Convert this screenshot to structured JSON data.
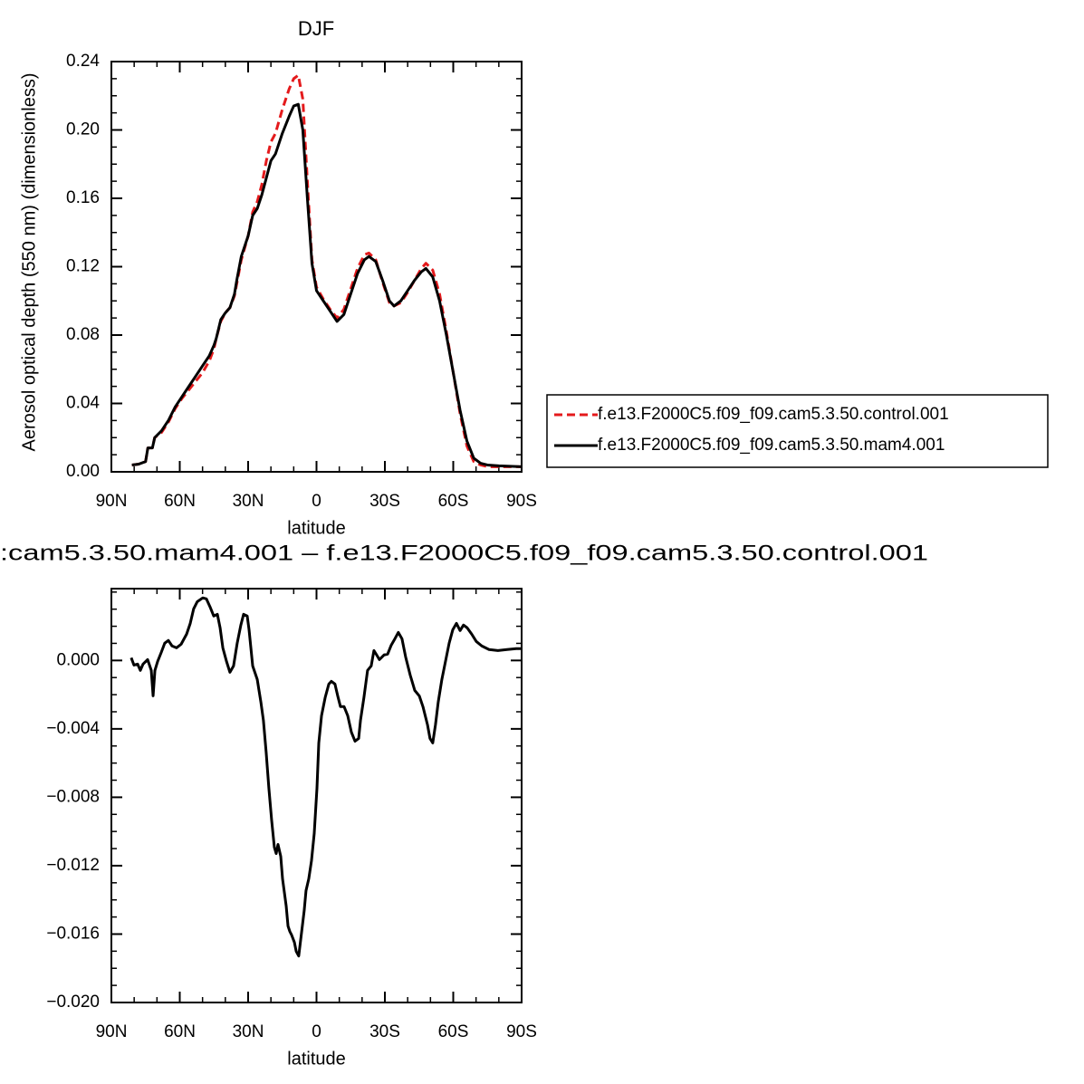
{
  "chart_data": [
    {
      "type": "line",
      "title": "DJF",
      "x_label": "latitude",
      "y_label": "Aerosol optical depth (550 nm) (dimensionless)",
      "x": [
        81,
        78,
        75,
        74,
        72,
        71,
        68,
        65,
        62,
        59,
        56,
        53,
        50,
        47,
        45,
        44,
        42,
        40,
        38,
        36,
        35,
        33,
        30,
        28,
        26,
        24,
        22,
        20,
        18,
        15,
        12,
        10,
        8,
        6,
        4,
        2,
        0,
        -3,
        -6,
        -9,
        -12,
        -15,
        -18,
        -21,
        -23,
        -26,
        -29,
        -32,
        -34,
        -37,
        -40,
        -43,
        -46,
        -48,
        -51,
        -54,
        -57,
        -60,
        -63,
        -66,
        -69,
        -72,
        -75,
        -80,
        -90
      ],
      "series": [
        {
          "name": "f.e13.F2000C5.f09_f09.cam5.3.50.control.001",
          "color": "#e41a1c",
          "line_style": "dashed",
          "values": [
            0.004,
            0.0045,
            0.006,
            0.014,
            0.014,
            0.02,
            0.023,
            0.029,
            0.037,
            0.043,
            0.048,
            0.053,
            0.058,
            0.065,
            0.072,
            0.078,
            0.088,
            0.093,
            0.096,
            0.103,
            0.11,
            0.124,
            0.138,
            0.152,
            0.158,
            0.168,
            0.182,
            0.193,
            0.198,
            0.212,
            0.224,
            0.23,
            0.232,
            0.218,
            0.17,
            0.124,
            0.108,
            0.101,
            0.095,
            0.09,
            0.095,
            0.107,
            0.119,
            0.127,
            0.128,
            0.124,
            0.111,
            0.099,
            0.097,
            0.099,
            0.105,
            0.112,
            0.119,
            0.122,
            0.118,
            0.104,
            0.082,
            0.058,
            0.034,
            0.015,
            0.006,
            0.004,
            0.003,
            0.003,
            0.003
          ]
        },
        {
          "name": "f.e13.F2000C5.f09_f09.cam5.3.50.mam4.001",
          "color": "#000000",
          "line_style": "solid",
          "values": [
            0.004,
            0.0045,
            0.006,
            0.014,
            0.014,
            0.02,
            0.024,
            0.03,
            0.038,
            0.044,
            0.05,
            0.056,
            0.062,
            0.068,
            0.074,
            0.078,
            0.089,
            0.093,
            0.096,
            0.104,
            0.112,
            0.126,
            0.138,
            0.15,
            0.154,
            0.162,
            0.172,
            0.182,
            0.186,
            0.198,
            0.208,
            0.214,
            0.215,
            0.2,
            0.16,
            0.122,
            0.106,
            0.1,
            0.094,
            0.088,
            0.092,
            0.104,
            0.116,
            0.124,
            0.126,
            0.123,
            0.112,
            0.1,
            0.097,
            0.1,
            0.106,
            0.112,
            0.117,
            0.119,
            0.114,
            0.1,
            0.08,
            0.058,
            0.036,
            0.018,
            0.008,
            0.005,
            0.004,
            0.0035,
            0.003
          ]
        }
      ],
      "xlim": [
        90,
        -90
      ],
      "xticks": [
        {
          "value": 90,
          "label": "90N"
        },
        {
          "value": 60,
          "label": "60N"
        },
        {
          "value": 30,
          "label": "30N"
        },
        0,
        {
          "value": -30,
          "label": "30S"
        },
        {
          "value": -60,
          "label": "60S"
        },
        {
          "value": -90,
          "label": "90S"
        }
      ],
      "ylim": [
        0,
        0.24
      ],
      "yticks": [
        {
          "value": 0,
          "label": "0.00"
        },
        0.04,
        0.08,
        0.12,
        0.16,
        {
          "value": 0.2,
          "label": "0.20"
        },
        0.24
      ],
      "legend": "right"
    },
    {
      "type": "line",
      "title": ":cam5.3.50.mam4.001 – f.e13.F2000C5.f09_f09.cam5.3.50.control.001",
      "x_label": "latitude",
      "x": [
        81.3,
        80.1,
        78.5,
        77.3,
        76.1,
        74.1,
        72.5,
        71.7,
        70.9,
        69.7,
        68.1,
        66.6,
        65.0,
        63.4,
        61.4,
        59.4,
        57.0,
        55.4,
        53.9,
        52.3,
        49.9,
        48.3,
        46.7,
        45.1,
        43.5,
        42.3,
        41.1,
        39.5,
        38.0,
        36.4,
        34.8,
        33.2,
        32.0,
        30.4,
        29.6,
        28.0,
        26.0,
        24.4,
        23.3,
        22.1,
        20.9,
        19.7,
        18.5,
        17.7,
        16.9,
        15.7,
        14.9,
        13.3,
        12.5,
        11.7,
        10.9,
        9.7,
        8.9,
        7.8,
        6.6,
        5.4,
        4.6,
        3.4,
        2.2,
        1.0,
        -0.2,
        -1.0,
        -2.2,
        -3.8,
        -5.4,
        -6.5,
        -8.1,
        -9.3,
        -10.5,
        -12.1,
        -13.7,
        -15.3,
        -16.9,
        -18.5,
        -19.3,
        -20.8,
        -22.4,
        -24.0,
        -25.2,
        -26.4,
        -27.6,
        -29.6,
        -31.2,
        -32.8,
        -34.4,
        -35.9,
        -37.5,
        -39.1,
        -41.1,
        -43.1,
        -45.1,
        -46.7,
        -48.7,
        -49.8,
        -51.0,
        -52.2,
        -53.4,
        -55.0,
        -56.6,
        -58.2,
        -59.8,
        -61.4,
        -63.0,
        -64.5,
        -66.1,
        -68.1,
        -70.1,
        -72.5,
        -75.7,
        -79.6,
        -83.6,
        -87.6,
        -90.0
      ],
      "values": [
        0.00016,
        -0.00027,
        -0.00021,
        -0.00058,
        -0.00021,
        5e-05,
        -0.00058,
        -0.00207,
        -0.00058,
        -5e-05,
        0.00048,
        0.00101,
        0.00117,
        0.00085,
        0.00074,
        0.00095,
        0.00154,
        0.00217,
        0.00302,
        0.00344,
        0.00366,
        0.0036,
        0.00313,
        0.0026,
        0.0027,
        0.00191,
        0.00074,
        -5e-05,
        -0.00069,
        -0.00032,
        0.00101,
        0.00207,
        0.0027,
        0.0026,
        0.0018,
        -0.00032,
        -0.00111,
        -0.00244,
        -0.0035,
        -0.00535,
        -0.00747,
        -0.00932,
        -0.01092,
        -0.01129,
        -0.01076,
        -0.01145,
        -0.01277,
        -0.01436,
        -0.01553,
        -0.01585,
        -0.01606,
        -0.01648,
        -0.01701,
        -0.01728,
        -0.01595,
        -0.01463,
        -0.01346,
        -0.01277,
        -0.01171,
        -0.01012,
        -0.00747,
        -0.00482,
        -0.00323,
        -0.00217,
        -0.00138,
        -0.00122,
        -0.00138,
        -0.00207,
        -0.0027,
        -0.0027,
        -0.00323,
        -0.00419,
        -0.00472,
        -0.00456,
        -0.0035,
        -0.00217,
        -0.00058,
        -0.00032,
        0.00058,
        0.00032,
        5e-05,
        0.00032,
        0.00037,
        0.0009,
        0.00127,
        0.00164,
        0.00127,
        0.00021,
        -0.00085,
        -0.00175,
        -0.00207,
        -0.0027,
        -0.00376,
        -0.00456,
        -0.00482,
        -0.00376,
        -0.00244,
        -0.00111,
        -5e-05,
        0.00101,
        0.0018,
        0.00217,
        0.00175,
        0.00207,
        0.00191,
        0.00154,
        0.00111,
        0.00085,
        0.00064,
        0.00058,
        0.00064,
        0.00069,
        0.00069
      ],
      "color": "#000000",
      "xlim": [
        90,
        -90
      ],
      "xticks": [
        {
          "value": 90,
          "label": "90N"
        },
        {
          "value": 60,
          "label": "60N"
        },
        {
          "value": 30,
          "label": "30N"
        },
        0,
        {
          "value": -30,
          "label": "30S"
        },
        {
          "value": -60,
          "label": "60S"
        },
        {
          "value": -90,
          "label": "90S"
        }
      ],
      "ylim": [
        -0.02,
        0.0042
      ],
      "yticks": [
        {
          "value": -0.02,
          "label": "−0.020"
        },
        {
          "value": -0.016,
          "label": "−0.016"
        },
        {
          "value": -0.012,
          "label": "−0.012"
        },
        {
          "value": -0.008,
          "label": "−0.008"
        },
        {
          "value": -0.004,
          "label": "−0.004"
        },
        {
          "value": 0,
          "label": "0.000"
        }
      ]
    }
  ]
}
